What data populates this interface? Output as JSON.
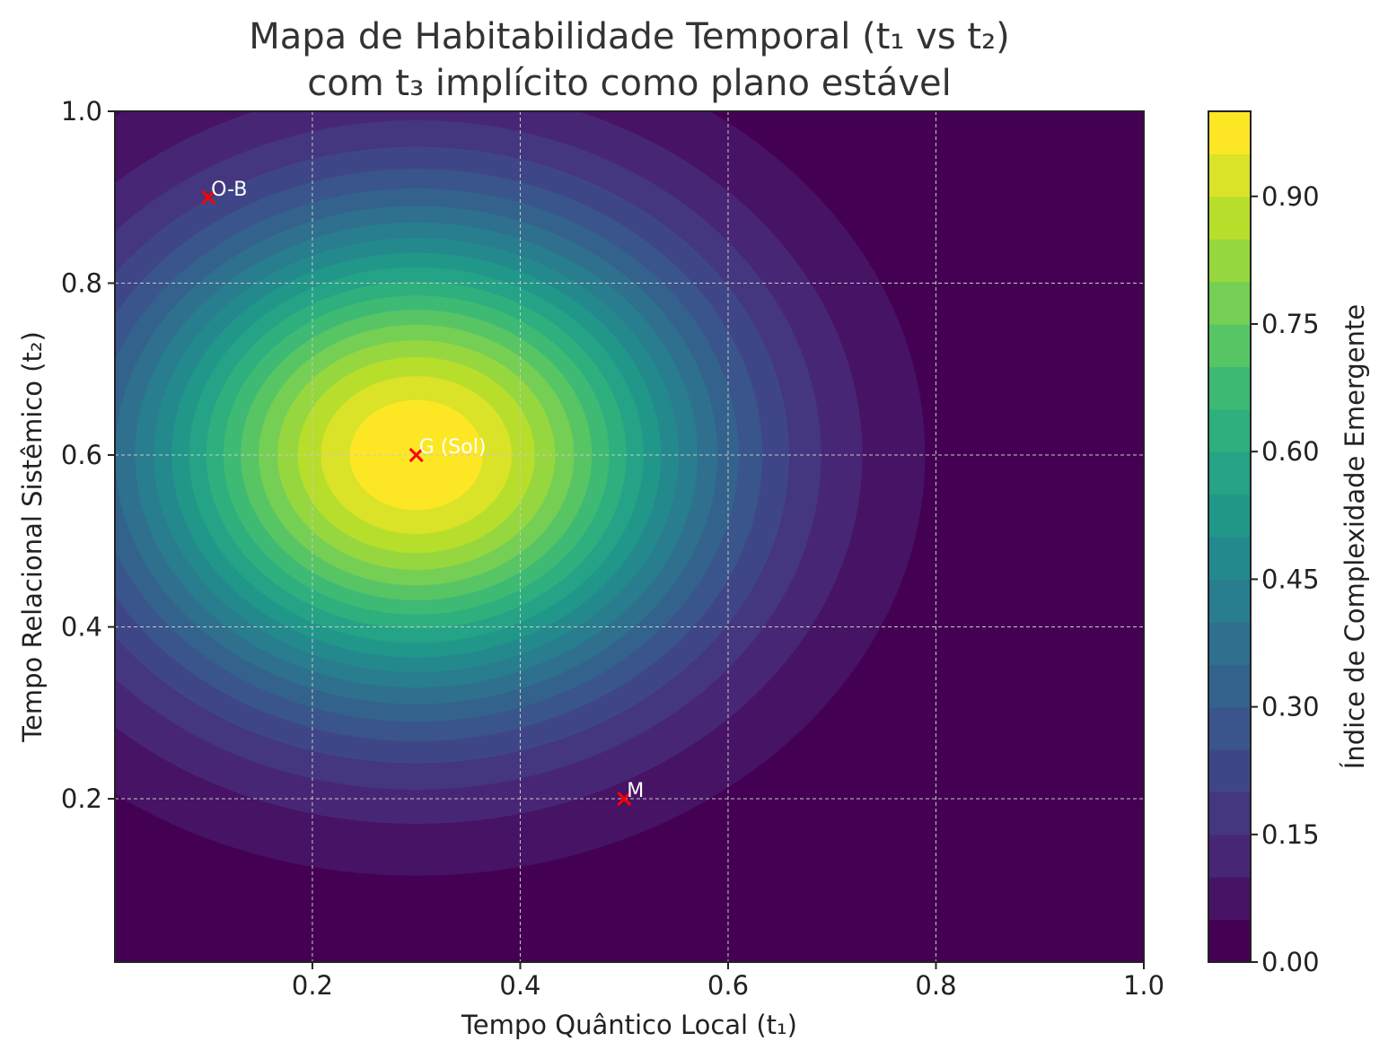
{
  "chart_data": {
    "type": "heatmap",
    "title_line1": "Mapa de Habitabilidade Temporal (t₁ vs t₂)",
    "title_line2": "com t₃ implícito como plano estável",
    "xlabel": "Tempo Quântico Local (t₁)",
    "ylabel": "Tempo Relacional Sistêmico (t₂)",
    "colorbar_label": "Índice de Complexidade Emergente",
    "xlim": [
      0.01,
      1.0
    ],
    "ylim": [
      0.01,
      1.0
    ],
    "x_ticks": [
      0.2,
      0.4,
      0.6,
      0.8,
      1.0
    ],
    "x_tick_labels": [
      "0.2",
      "0.4",
      "0.6",
      "0.8",
      "1.0"
    ],
    "y_ticks": [
      0.2,
      0.4,
      0.6,
      0.8,
      1.0
    ],
    "y_tick_labels": [
      "0.2",
      "0.4",
      "0.6",
      "0.8",
      "1.0"
    ],
    "colorbar_ticks": [
      0.0,
      0.15,
      0.3,
      0.45,
      0.6,
      0.75,
      0.9
    ],
    "colorbar_tick_labels": [
      "0.00",
      "0.15",
      "0.30",
      "0.45",
      "0.60",
      "0.75",
      "0.90"
    ],
    "colorbar_range": [
      0.0,
      1.0
    ],
    "levels": 20,
    "surface": {
      "function": "gaussian",
      "center": [
        0.3,
        0.6
      ],
      "sigma_x": 0.2,
      "sigma_y": 0.2,
      "peak": 1.0
    },
    "grid": true,
    "colormap": "viridis",
    "points": [
      {
        "label": "O-B",
        "x": 0.1,
        "y": 0.9
      },
      {
        "label": "G (Sol)",
        "x": 0.3,
        "y": 0.6
      },
      {
        "label": "M",
        "x": 0.5,
        "y": 0.2
      }
    ],
    "marker_color": "#ff0000"
  }
}
